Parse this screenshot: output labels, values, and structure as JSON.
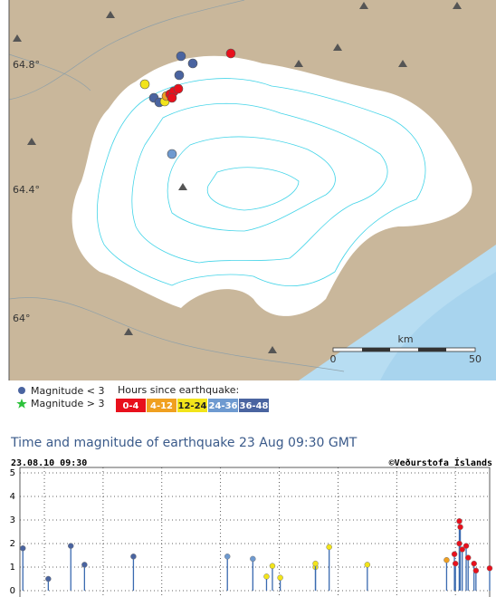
{
  "map": {
    "lat_labels": [
      "64.8°",
      "64.4°",
      "64°"
    ],
    "scale": {
      "unit": "km",
      "start": "0",
      "end": "50"
    }
  },
  "legend": {
    "magnitude_small": "Magnitude < 3",
    "magnitude_large": "Magnitude > 3",
    "hours_title": "Hours since earthquake:"
  },
  "title": "Time and magnitude of earthquake",
  "date": "23 Aug 09:30 GMT",
  "chart_data": {
    "type": "stem",
    "header": "23.08.10 09:30",
    "credit": "©Veðurstofa Íslands",
    "xlim": [
      0,
      48
    ],
    "xticks": [
      2.5,
      8.5,
      14.5,
      20.5,
      26.5,
      32.5,
      38.5,
      44.5
    ],
    "ylim": [
      0,
      5
    ],
    "yticks": [
      0,
      1,
      2,
      3,
      4,
      5
    ],
    "grid": true,
    "series": [
      {
        "name": "0-4",
        "color": "#e8101c",
        "x": [
          44.4,
          44.5,
          44.9,
          45.0,
          44.9,
          45.2,
          45.6,
          45.8,
          46.4,
          46.6,
          48.0
        ],
        "values": [
          1.55,
          1.15,
          2.95,
          2.7,
          2.0,
          1.75,
          1.9,
          1.4,
          1.15,
          0.85,
          0.95
        ]
      },
      {
        "name": "4-12",
        "color": "#f0a020",
        "x": [
          43.6
        ],
        "values": [
          1.3
        ]
      },
      {
        "name": "12-24",
        "color": "#f2e41a",
        "x": [
          25.2,
          25.8,
          26.6,
          30.2,
          30.2,
          31.6,
          35.5
        ],
        "values": [
          0.6,
          1.05,
          0.55,
          1.0,
          1.15,
          1.85,
          1.1
        ]
      },
      {
        "name": "24-36",
        "color": "#6e9ad0",
        "x": [
          21.2,
          23.8
        ],
        "values": [
          1.45,
          1.35
        ]
      },
      {
        "name": "36-48",
        "color": "#4a64a0",
        "x": [
          0.3,
          2.9,
          5.2,
          6.6,
          11.6
        ],
        "values": [
          1.8,
          0.5,
          1.9,
          1.1,
          1.45
        ]
      }
    ]
  }
}
